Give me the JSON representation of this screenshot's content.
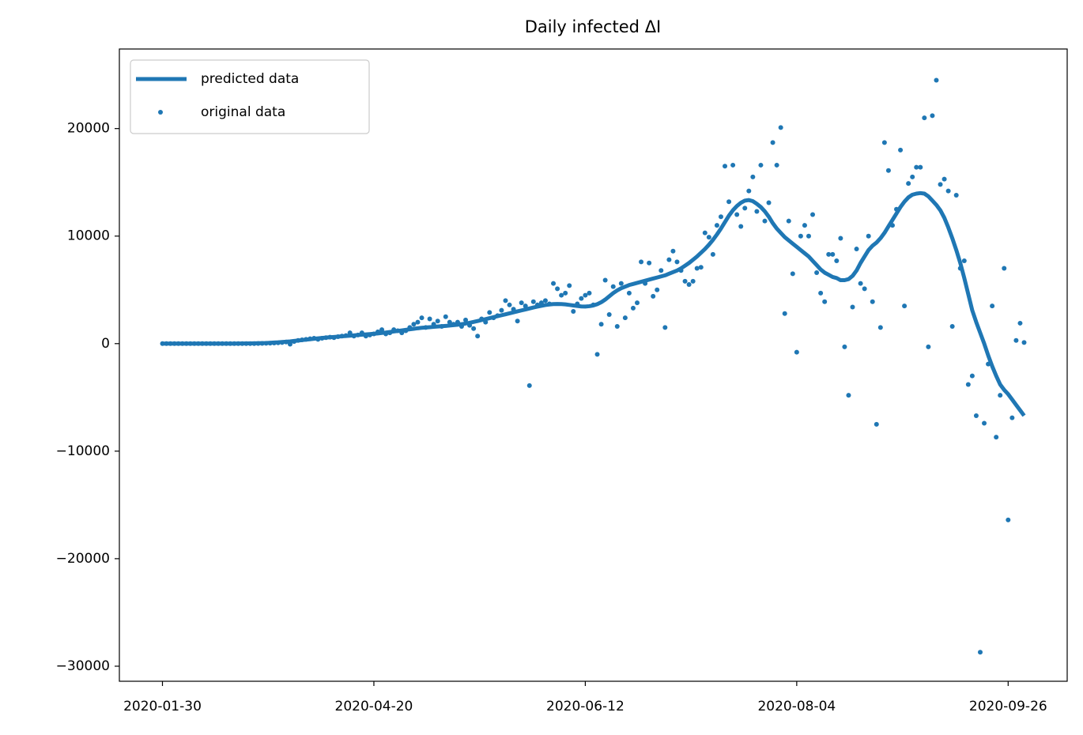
{
  "chart_data": {
    "type": "line",
    "title": "Daily infected  ΔI",
    "categories": [
      "2020-01-30",
      null,
      null,
      null,
      null,
      null,
      null,
      null,
      null,
      null,
      null,
      null,
      null,
      null,
      null,
      null,
      null,
      null,
      null,
      null,
      null,
      null,
      null,
      null,
      null,
      null,
      null,
      null,
      null,
      null,
      null,
      null,
      null,
      null,
      null,
      null,
      null,
      null,
      null,
      null,
      null,
      null,
      null,
      null,
      null,
      null,
      null,
      null,
      null,
      null,
      null,
      null,
      null,
      "2020-04-20",
      null,
      null,
      null,
      null,
      null,
      null,
      null,
      null,
      null,
      null,
      null,
      null,
      null,
      null,
      null,
      null,
      null,
      null,
      null,
      null,
      null,
      null,
      null,
      null,
      null,
      null,
      null,
      null,
      null,
      null,
      null,
      null,
      null,
      null,
      null,
      null,
      null,
      null,
      null,
      null,
      null,
      null,
      null,
      null,
      null,
      null,
      null,
      null,
      null,
      null,
      null,
      null,
      "2020-06-12",
      null,
      null,
      null,
      null,
      null,
      null,
      null,
      null,
      null,
      null,
      null,
      null,
      null,
      null,
      null,
      null,
      null,
      null,
      null,
      null,
      null,
      null,
      null,
      null,
      null,
      null,
      null,
      null,
      null,
      null,
      null,
      null,
      null,
      null,
      null,
      null,
      null,
      null,
      null,
      null,
      null,
      null,
      null,
      null,
      null,
      null,
      null,
      null,
      null,
      null,
      null,
      null,
      "2020-08-04",
      null,
      null,
      null,
      null,
      null,
      null,
      null,
      null,
      null,
      null,
      null,
      null,
      null,
      null,
      null,
      null,
      null,
      null,
      null,
      null,
      null,
      null,
      null,
      null,
      null,
      null,
      null,
      null,
      null,
      null,
      null,
      null,
      null,
      null,
      null,
      null,
      null,
      null,
      null,
      null,
      null,
      null,
      null,
      null,
      null,
      null,
      null,
      null,
      null,
      null,
      null,
      null,
      "2020-09-26",
      null,
      null,
      null,
      null
    ],
    "series": [
      {
        "name": "predicted data",
        "type": "line",
        "color": "#1f77b4",
        "values": [
          0,
          0,
          0,
          0,
          0,
          0,
          0,
          0,
          0,
          0,
          0,
          0,
          0,
          0,
          0,
          0,
          0,
          0,
          0,
          10,
          10,
          20,
          20,
          30,
          40,
          50,
          60,
          80,
          100,
          120,
          150,
          180,
          210,
          250,
          290,
          330,
          370,
          410,
          450,
          490,
          530,
          560,
          590,
          620,
          650,
          680,
          710,
          740,
          770,
          800,
          830,
          860,
          890,
          920,
          950,
          990,
          1030,
          1080,
          1130,
          1180,
          1230,
          1280,
          1330,
          1380,
          1430,
          1470,
          1500,
          1530,
          1560,
          1590,
          1620,
          1650,
          1680,
          1720,
          1760,
          1810,
          1870,
          1940,
          2020,
          2100,
          2190,
          2280,
          2370,
          2460,
          2550,
          2640,
          2730,
          2820,
          2910,
          3000,
          3090,
          3180,
          3270,
          3360,
          3440,
          3520,
          3590,
          3640,
          3680,
          3690,
          3680,
          3650,
          3600,
          3550,
          3500,
          3460,
          3450,
          3480,
          3550,
          3670,
          3850,
          4100,
          4400,
          4700,
          4950,
          5150,
          5300,
          5450,
          5550,
          5650,
          5750,
          5850,
          5950,
          6050,
          6150,
          6250,
          6350,
          6500,
          6650,
          6800,
          7000,
          7250,
          7500,
          7800,
          8100,
          8450,
          8800,
          9200,
          9650,
          10150,
          10700,
          11300,
          11900,
          12400,
          12800,
          13100,
          13300,
          13350,
          13250,
          13000,
          12700,
          12300,
          11800,
          11200,
          10700,
          10300,
          9900,
          9600,
          9300,
          9000,
          8700,
          8400,
          8100,
          7700,
          7300,
          6900,
          6600,
          6400,
          6200,
          6100,
          5900,
          5900,
          6000,
          6300,
          6800,
          7500,
          8100,
          8700,
          9100,
          9400,
          9800,
          10300,
          10900,
          11500,
          12100,
          12700,
          13200,
          13600,
          13850,
          13950,
          14000,
          13950,
          13700,
          13300,
          12900,
          12400,
          11700,
          10800,
          9800,
          8700,
          7500,
          6100,
          4600,
          3100,
          2000,
          1000,
          0,
          -1100,
          -2100,
          -3000,
          -3800,
          -4300,
          -4700,
          -5200,
          -5700,
          -6200,
          -6700
        ]
      },
      {
        "name": "original data",
        "type": "scatter",
        "color": "#1f77b4",
        "values": [
          0,
          0,
          0,
          0,
          0,
          0,
          0,
          0,
          0,
          0,
          0,
          0,
          0,
          0,
          0,
          0,
          0,
          0,
          0,
          0,
          0,
          0,
          0,
          0,
          10,
          20,
          30,
          40,
          60,
          80,
          100,
          150,
          -50,
          200,
          300,
          350,
          400,
          450,
          500,
          400,
          500,
          550,
          600,
          550,
          650,
          700,
          750,
          1000,
          700,
          800,
          1000,
          700,
          800,
          900,
          1100,
          1300,
          900,
          1000,
          1300,
          1200,
          1000,
          1200,
          1500,
          1800,
          2000,
          2400,
          1500,
          2300,
          1800,
          2100,
          1600,
          2500,
          2000,
          1800,
          2000,
          1600,
          2200,
          1700,
          1400,
          700,
          2300,
          2000,
          2900,
          2400,
          2600,
          3100,
          4000,
          3600,
          3200,
          2100,
          3800,
          3500,
          -3900,
          3900,
          3600,
          3800,
          4000,
          3700,
          5600,
          5100,
          4500,
          4700,
          5400,
          3000,
          3700,
          4200,
          4500,
          4700,
          3600,
          -1000,
          1800,
          5900,
          2700,
          5300,
          1600,
          5600,
          2400,
          4700,
          3300,
          3800,
          7600,
          5600,
          7500,
          4400,
          5000,
          6800,
          1500,
          7800,
          8600,
          7600,
          6800,
          5800,
          5500,
          5800,
          7000,
          7100,
          10300,
          9900,
          8300,
          11000,
          11800,
          16500,
          13200,
          16600,
          12000,
          10900,
          12600,
          14200,
          15500,
          12300,
          16600,
          11400,
          13100,
          18700,
          16600,
          20100,
          2800,
          11400,
          6500,
          -800,
          10000,
          11000,
          10000,
          12000,
          6600,
          4700,
          3900,
          8300,
          8300,
          7700,
          9800,
          -300,
          -4800,
          3400,
          8800,
          5600,
          5100,
          10000,
          3900,
          -7500,
          1500,
          18700,
          16100,
          11000,
          12500,
          18000,
          3500,
          14900,
          15500,
          16400,
          16400,
          21000,
          -300,
          21200,
          24500,
          14800,
          15300,
          14200,
          1600,
          13800,
          7000,
          7700,
          -3800,
          -3000,
          -6700,
          -28700,
          -7400,
          -1900,
          3500,
          -8700,
          -4800,
          7000,
          -16400,
          -6900,
          300,
          1900,
          100
        ]
      }
    ],
    "ylim": [
      -31400,
      27400
    ],
    "yticks": [
      {
        "value": -30000,
        "label": "−30000"
      },
      {
        "value": -20000,
        "label": "−20000"
      },
      {
        "value": -10000,
        "label": "−10000"
      },
      0,
      10000,
      20000
    ],
    "legend": "upper left",
    "grid": false
  }
}
